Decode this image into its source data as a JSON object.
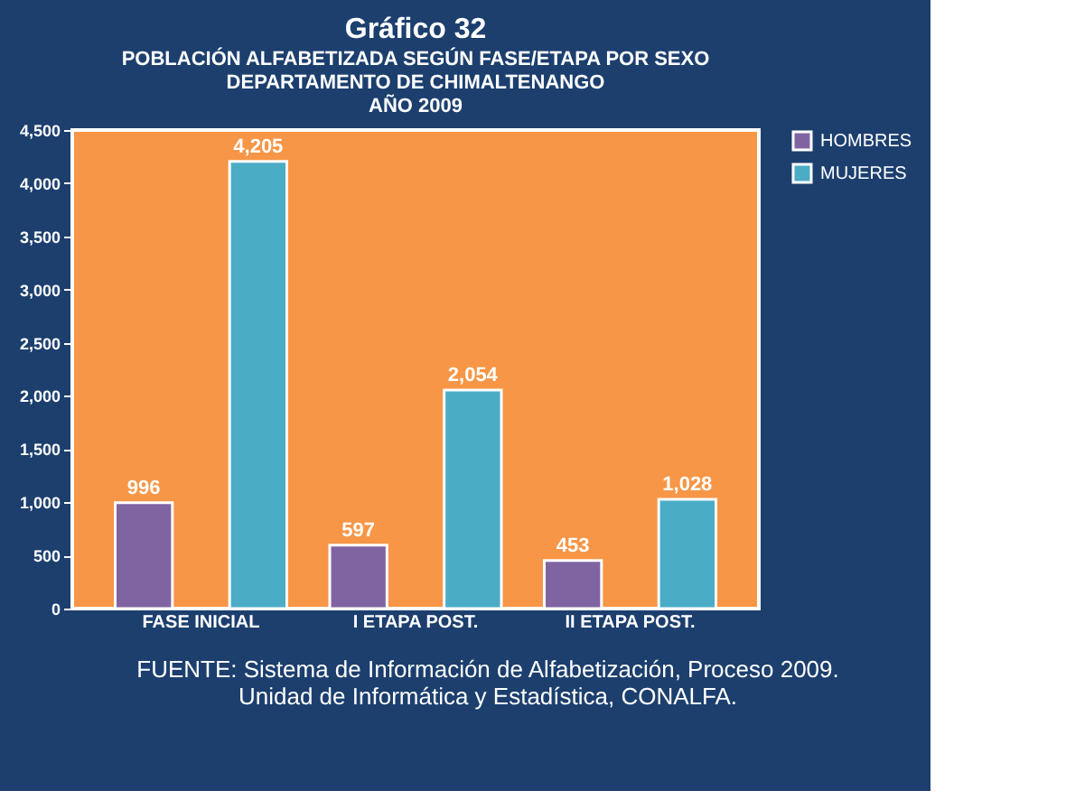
{
  "chart_data": {
    "type": "bar",
    "title": "Gráfico 32",
    "subtitle": "POBLACIÓN ALFABETIZADA SEGÚN FASE/ETAPA POR SEXO\nDEPARTAMENTO DE CHIMALTENANGO\nAÑO 2009",
    "categories": [
      "FASE INICIAL",
      "I ETAPA POST.",
      "II ETAPA POST."
    ],
    "series": [
      {
        "name": "HOMBRES",
        "color": "#8064a2",
        "values": [
          996,
          597,
          453
        ],
        "value_labels": [
          "996",
          "597",
          "453"
        ]
      },
      {
        "name": "MUJERES",
        "color": "#4bacc6",
        "values": [
          4205,
          2054,
          1028
        ],
        "value_labels": [
          "4,205",
          "2,054",
          "1,028"
        ]
      }
    ],
    "ylim": [
      0,
      4500
    ],
    "yticks": [
      0,
      {
        "value": 500,
        "label": "500"
      },
      {
        "value": 1000,
        "label": "1,000"
      },
      {
        "value": 1500,
        "label": "1,500"
      },
      {
        "value": 2000,
        "label": "2,000"
      },
      {
        "value": 2500,
        "label": "2,500"
      },
      {
        "value": 3000,
        "label": "3,000"
      },
      {
        "value": 3500,
        "label": "3,500"
      },
      {
        "value": 4000,
        "label": "4,000"
      },
      {
        "value": 4500,
        "label": "4,500"
      }
    ],
    "legend": "right",
    "grid": false,
    "annotations": [
      "FUENTE: Sistema de Información de Alfabetización, Proceso 2009.\nUnidad de Informática y Estadística, CONALFA."
    ]
  }
}
